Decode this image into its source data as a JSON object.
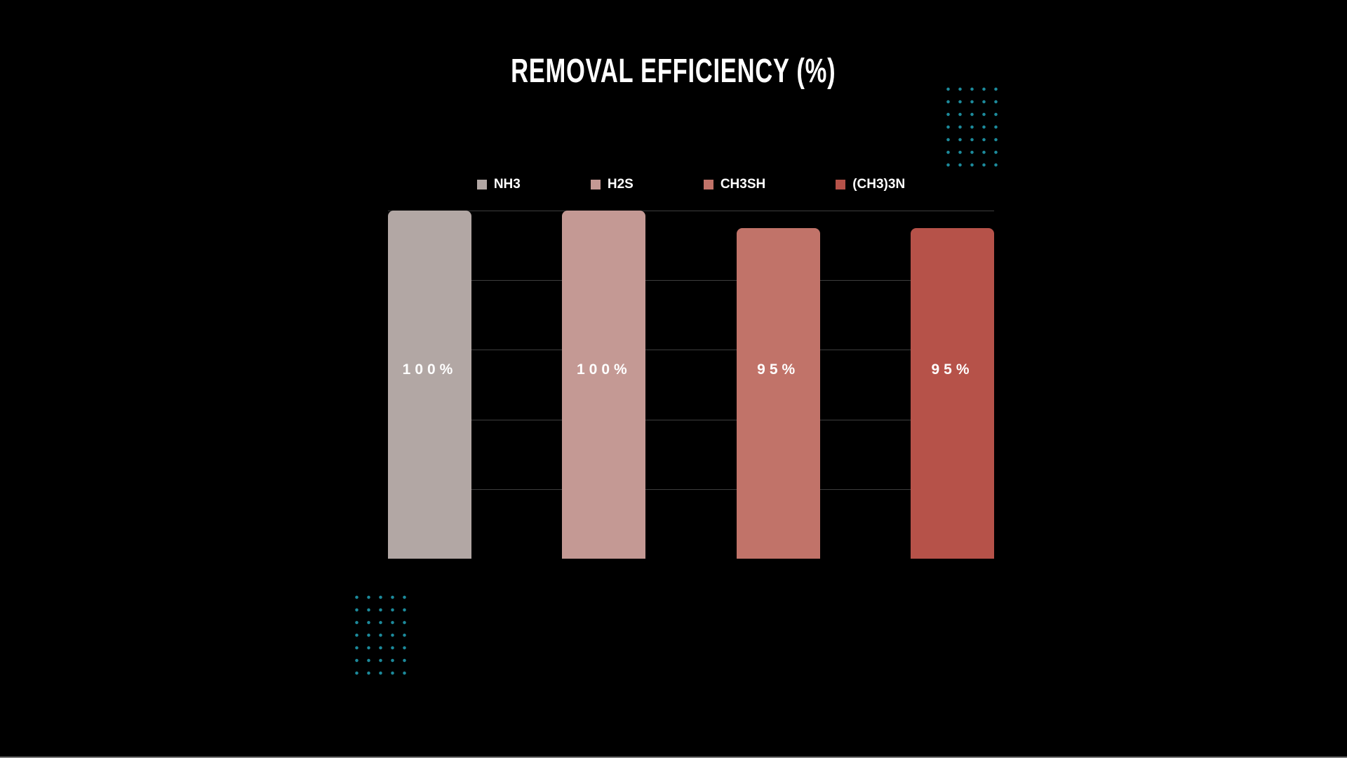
{
  "title": "REMOVAL EFFICIENCY (%)",
  "chart_data": {
    "type": "bar",
    "title": "REMOVAL EFFICIENCY (%)",
    "categories": [
      "NH3",
      "H2S",
      "CH3SH",
      "(CH3)3N"
    ],
    "values": [
      100,
      100,
      95,
      95
    ],
    "value_labels": [
      "100%",
      "100%",
      "95%",
      "95%"
    ],
    "bar_colors": [
      "#b2a7a4",
      "#c49994",
      "#c17369",
      "#b65249"
    ],
    "ylim": [
      0,
      100
    ],
    "gridline_values": [
      100,
      80,
      60,
      40,
      20
    ],
    "grid": true,
    "legend_position": "top",
    "legend": [
      {
        "label": "NH3",
        "color": "#b2a7a4"
      },
      {
        "label": "H2S",
        "color": "#c49994"
      },
      {
        "label": "CH3SH",
        "color": "#c17369"
      },
      {
        "label": "(CH3)3N",
        "color": "#b65249"
      }
    ]
  },
  "colors": {
    "background": "#000000",
    "title_text": "#ffffff",
    "legend_text": "#ffffff",
    "bar_label_text": "#ffffff",
    "gridline": "#3d3d3d",
    "dot_decoration": "#1c8a9b",
    "bottom_divider": "#9a9a9a"
  },
  "decorations": {
    "dot_grid_rows": 7,
    "dot_grid_cols": 5
  }
}
